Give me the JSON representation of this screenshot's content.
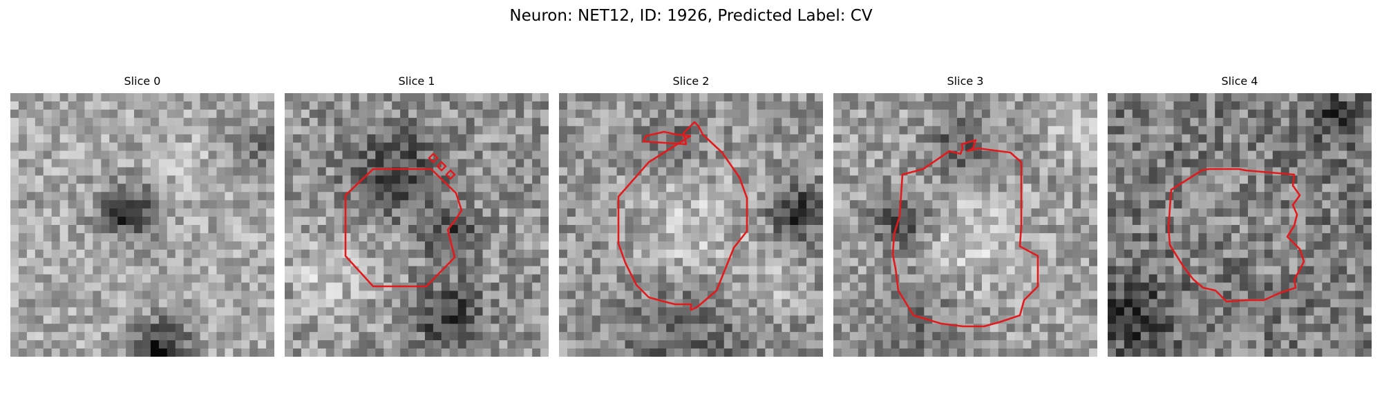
{
  "figure": {
    "title": "Neuron: NET12, ID: 1926, Predicted Label: CV"
  },
  "colors": {
    "contour": "#e31a1c",
    "background": "#ffffff"
  },
  "panels": [
    {
      "title": "Slice 0",
      "has_contour": false
    },
    {
      "title": "Slice 1",
      "has_contour": true
    },
    {
      "title": "Slice 2",
      "has_contour": true
    },
    {
      "title": "Slice 3",
      "has_contour": true
    },
    {
      "title": "Slice 4",
      "has_contour": true
    }
  ]
}
